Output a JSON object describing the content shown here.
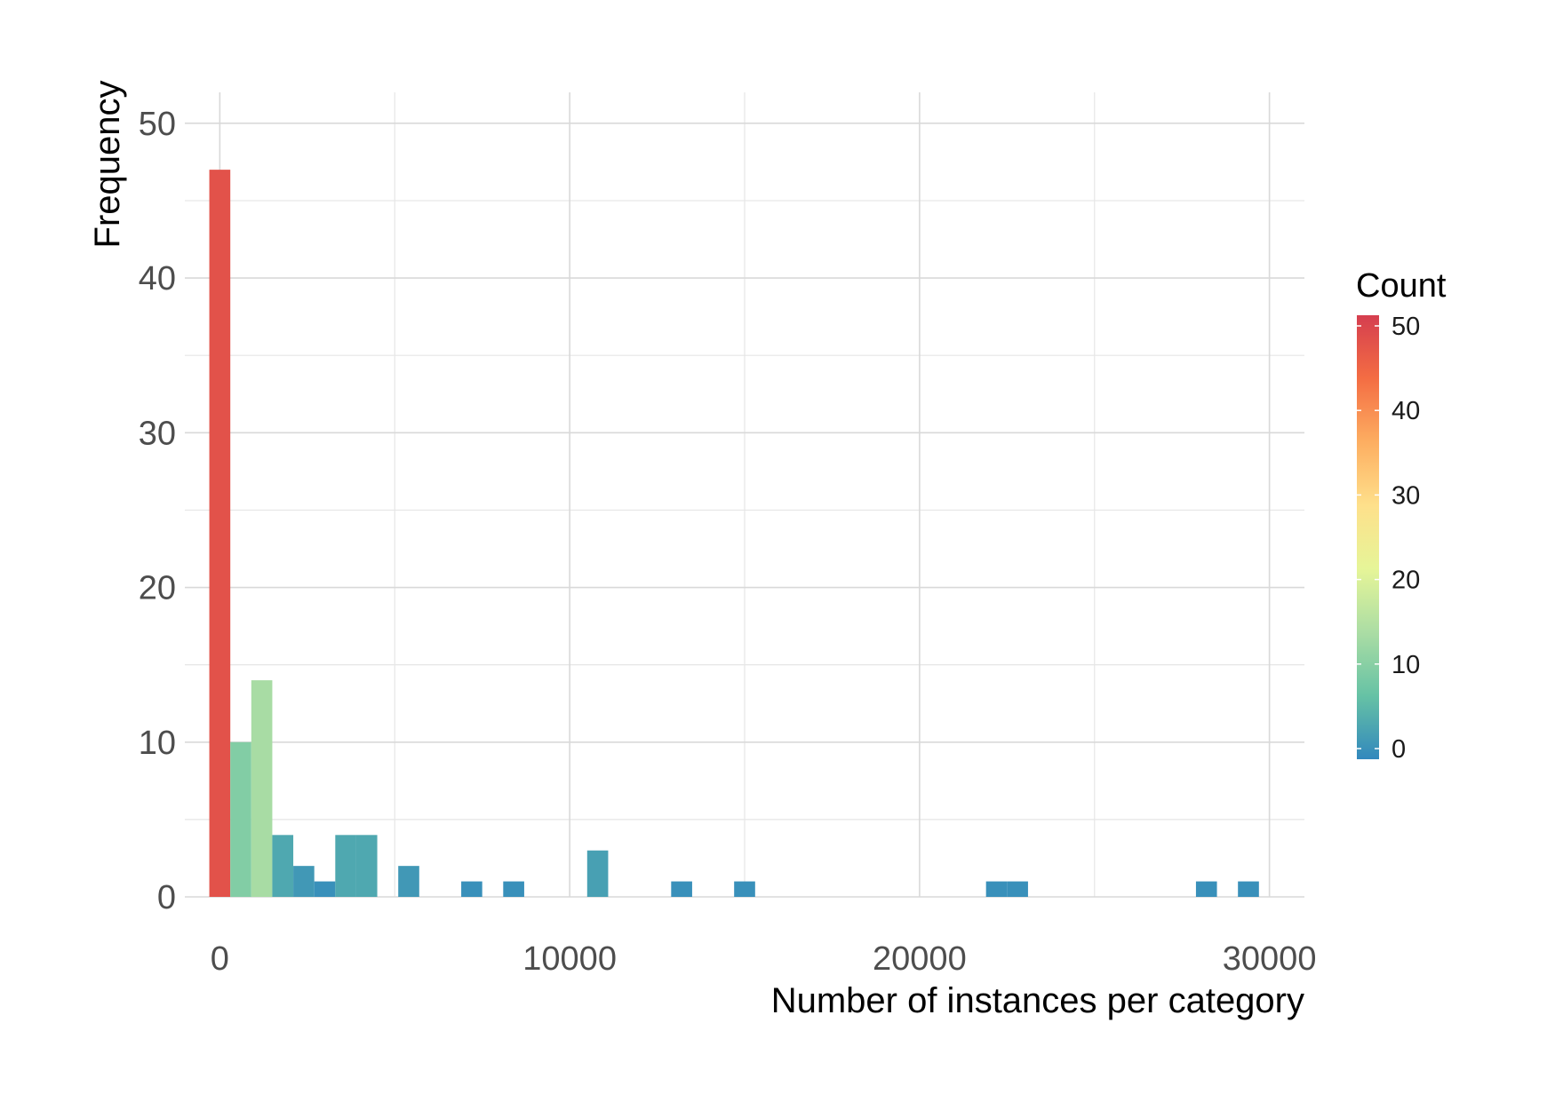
{
  "chart_data": {
    "type": "bar",
    "subtype": "histogram",
    "xlabel": "Number of instances per category",
    "ylabel": "Frequency",
    "xlim": [
      -1000,
      31000
    ],
    "ylim": [
      0,
      52
    ],
    "x_ticks": [
      0,
      10000,
      20000,
      30000
    ],
    "y_ticks": [
      0,
      10,
      20,
      30,
      40,
      50
    ],
    "x_tick_labels": [
      "0",
      "10000",
      "20000",
      "30000"
    ],
    "y_tick_labels": [
      "0",
      "10",
      "20",
      "30",
      "40",
      "50"
    ],
    "grid": true,
    "legend": {
      "title": "Count",
      "placement": "right",
      "ticks": [
        0,
        10,
        20,
        30,
        40,
        50
      ],
      "tick_labels": [
        "0",
        "10",
        "20",
        "30",
        "40",
        "50"
      ],
      "range": [
        0,
        50
      ],
      "colors": [
        "#3288bd",
        "#66c2a5",
        "#abdda4",
        "#e6f598",
        "#fee08b",
        "#fdae61",
        "#f46d43",
        "#d53e4f"
      ]
    },
    "bin_width": 600,
    "bins": [
      {
        "x_start": -300,
        "x_end": 300,
        "count": 47
      },
      {
        "x_start": 300,
        "x_end": 900,
        "count": 10
      },
      {
        "x_start": 900,
        "x_end": 1500,
        "count": 14
      },
      {
        "x_start": 1500,
        "x_end": 2100,
        "count": 4
      },
      {
        "x_start": 2100,
        "x_end": 2700,
        "count": 2
      },
      {
        "x_start": 2700,
        "x_end": 3300,
        "count": 1
      },
      {
        "x_start": 3300,
        "x_end": 3900,
        "count": 4
      },
      {
        "x_start": 3900,
        "x_end": 4500,
        "count": 4
      },
      {
        "x_start": 5100,
        "x_end": 5700,
        "count": 2
      },
      {
        "x_start": 6900,
        "x_end": 7500,
        "count": 1
      },
      {
        "x_start": 8100,
        "x_end": 8700,
        "count": 1
      },
      {
        "x_start": 10500,
        "x_end": 11100,
        "count": 3
      },
      {
        "x_start": 12900,
        "x_end": 13500,
        "count": 1
      },
      {
        "x_start": 14700,
        "x_end": 15300,
        "count": 1
      },
      {
        "x_start": 21900,
        "x_end": 22500,
        "count": 1
      },
      {
        "x_start": 22500,
        "x_end": 23100,
        "count": 1
      },
      {
        "x_start": 27900,
        "x_end": 28500,
        "count": 1
      },
      {
        "x_start": 29100,
        "x_end": 29700,
        "count": 1
      }
    ]
  }
}
